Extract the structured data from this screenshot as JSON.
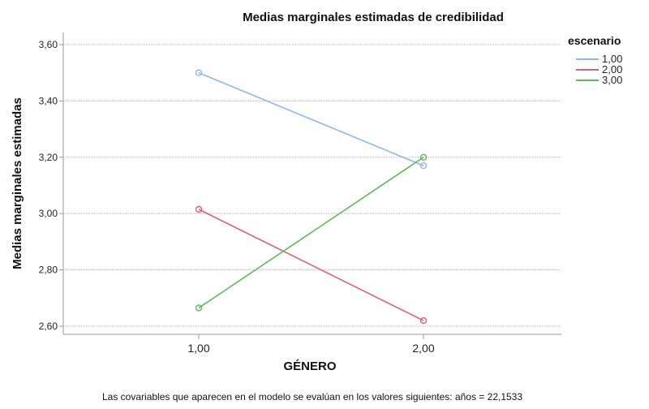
{
  "chart_data": {
    "type": "line",
    "title": "Medias marginales estimadas de credibilidad",
    "xlabel": "GÉNERO",
    "ylabel": "Medias marginales estimadas",
    "categories": [
      "1,00",
      "2,00"
    ],
    "ylim": [
      2.56,
      3.7
    ],
    "yticks": [
      2.6,
      2.8,
      3.0,
      3.2,
      3.4,
      3.6
    ],
    "ytick_labels": [
      "2,60",
      "2,80",
      "3,00",
      "3,20",
      "3,40",
      "3,60"
    ],
    "grid": true,
    "legend": {
      "title": "escenario",
      "placement": "top-right"
    },
    "series": [
      {
        "name": "1,00",
        "values": [
          3.5,
          3.17
        ],
        "color": "#8fb8ea"
      },
      {
        "name": "2,00",
        "values": [
          3.015,
          2.62
        ],
        "color": "#e0607a"
      },
      {
        "name": "3,00",
        "values": [
          2.665,
          3.2
        ],
        "color": "#5fb85f"
      }
    ]
  },
  "footnote": "Las covariables que aparecen en el modelo se evalúan en los valores siguientes: años = 22,1533"
}
